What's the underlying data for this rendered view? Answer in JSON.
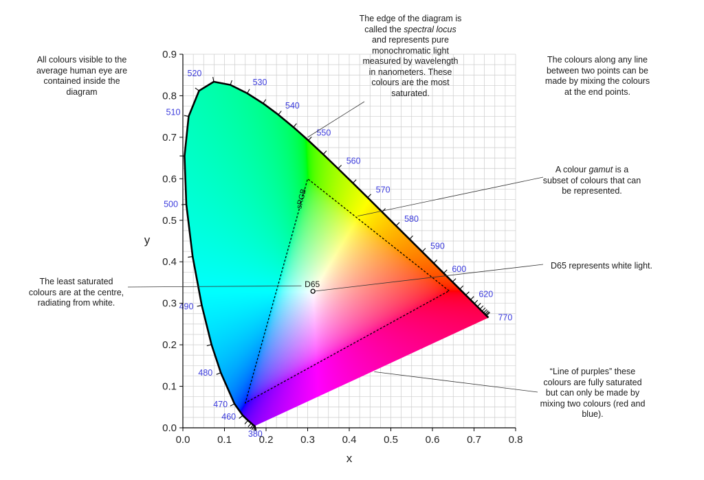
{
  "chart_data": {
    "type": "diagram",
    "xlabel": "x",
    "ylabel": "y",
    "xlim": [
      0.0,
      0.8
    ],
    "ylim": [
      0.0,
      0.9
    ],
    "x_ticks": [
      "0.0",
      "0.1",
      "0.2",
      "0.3",
      "0.4",
      "0.5",
      "0.6",
      "0.7",
      "0.8"
    ],
    "y_ticks": [
      "0.0",
      "0.1",
      "0.2",
      "0.3",
      "0.4",
      "0.5",
      "0.6",
      "0.7",
      "0.8",
      "0.9"
    ],
    "grid": true,
    "spectral_locus": [
      [
        0.1741,
        0.005
      ],
      [
        0.1738,
        0.0049
      ],
      [
        0.1733,
        0.0048
      ],
      [
        0.1726,
        0.0048
      ],
      [
        0.1714,
        0.0051
      ],
      [
        0.1689,
        0.0069
      ],
      [
        0.1644,
        0.0109
      ],
      [
        0.1566,
        0.0177
      ],
      [
        0.144,
        0.0297
      ],
      [
        0.1241,
        0.0578
      ],
      [
        0.0913,
        0.1327
      ],
      [
        0.0687,
        0.2007
      ],
      [
        0.0454,
        0.295
      ],
      [
        0.0235,
        0.4127
      ],
      [
        0.0082,
        0.5384
      ],
      [
        0.0039,
        0.6548
      ],
      [
        0.0139,
        0.7502
      ],
      [
        0.0389,
        0.812
      ],
      [
        0.0743,
        0.8338
      ],
      [
        0.1142,
        0.8262
      ],
      [
        0.1547,
        0.8059
      ],
      [
        0.1929,
        0.7816
      ],
      [
        0.2296,
        0.7543
      ],
      [
        0.2658,
        0.7243
      ],
      [
        0.3016,
        0.6923
      ],
      [
        0.3373,
        0.6589
      ],
      [
        0.3731,
        0.6245
      ],
      [
        0.4087,
        0.5896
      ],
      [
        0.4441,
        0.5547
      ],
      [
        0.4788,
        0.5202
      ],
      [
        0.5125,
        0.4866
      ],
      [
        0.5448,
        0.4544
      ],
      [
        0.5752,
        0.4242
      ],
      [
        0.6029,
        0.3965
      ],
      [
        0.627,
        0.3725
      ],
      [
        0.6482,
        0.3514
      ],
      [
        0.6658,
        0.334
      ],
      [
        0.6801,
        0.3197
      ],
      [
        0.6915,
        0.3083
      ],
      [
        0.7006,
        0.2993
      ],
      [
        0.7079,
        0.292
      ],
      [
        0.714,
        0.2859
      ],
      [
        0.719,
        0.2809
      ],
      [
        0.723,
        0.277
      ],
      [
        0.726,
        0.274
      ],
      [
        0.7283,
        0.2717
      ],
      [
        0.73,
        0.27
      ],
      [
        0.7347,
        0.2653
      ]
    ],
    "wavelength_labels": [
      {
        "nm": 380,
        "x": 0.1741,
        "y": 0.005,
        "label": "380"
      },
      {
        "nm": 460,
        "x": 0.144,
        "y": 0.0297,
        "label": "460"
      },
      {
        "nm": 470,
        "x": 0.1241,
        "y": 0.0578,
        "label": "470"
      },
      {
        "nm": 480,
        "x": 0.0913,
        "y": 0.1327,
        "label": "480"
      },
      {
        "nm": 490,
        "x": 0.0454,
        "y": 0.295,
        "label": "490"
      },
      {
        "nm": 500,
        "x": 0.0082,
        "y": 0.5384,
        "label": "500"
      },
      {
        "nm": 510,
        "x": 0.0139,
        "y": 0.7502,
        "label": "510"
      },
      {
        "nm": 520,
        "x": 0.0743,
        "y": 0.8338,
        "label": "520"
      },
      {
        "nm": 530,
        "x": 0.1547,
        "y": 0.8059,
        "label": "530"
      },
      {
        "nm": 540,
        "x": 0.2296,
        "y": 0.7543,
        "label": "540"
      },
      {
        "nm": 550,
        "x": 0.3016,
        "y": 0.6923,
        "label": "550"
      },
      {
        "nm": 560,
        "x": 0.3731,
        "y": 0.6245,
        "label": "560"
      },
      {
        "nm": 570,
        "x": 0.4441,
        "y": 0.5547,
        "label": "570"
      },
      {
        "nm": 580,
        "x": 0.5125,
        "y": 0.4866,
        "label": "580"
      },
      {
        "nm": 590,
        "x": 0.5752,
        "y": 0.4242,
        "label": "590"
      },
      {
        "nm": 600,
        "x": 0.627,
        "y": 0.3725,
        "label": "600"
      },
      {
        "nm": 620,
        "x": 0.6915,
        "y": 0.3083,
        "label": "620"
      },
      {
        "nm": 770,
        "x": 0.7347,
        "y": 0.2653,
        "label": "770"
      }
    ],
    "srgb_gamut": {
      "label": "sRGB",
      "vertices": [
        [
          0.64,
          0.33
        ],
        [
          0.3,
          0.6
        ],
        [
          0.15,
          0.06
        ]
      ]
    },
    "white_point": {
      "label": "D65",
      "x": 0.3127,
      "y": 0.329
    },
    "annotations": [
      {
        "id": "inside",
        "text": "All colours visible to the average human eye are contained inside the diagram"
      },
      {
        "id": "locus",
        "text_before": "The edge of the diagram is called the ",
        "text_italic": "spectral locus",
        "text_after": " and represents pure monochromatic light measured by wavelength in nanometers. These colours are the most saturated.",
        "target": [
          0.3,
          0.7
        ]
      },
      {
        "id": "mixing",
        "text": "The colours along any line between two points can be made by mixing the colours at the end points."
      },
      {
        "id": "gamut",
        "text_before": "A colour ",
        "text_italic": "gamut",
        "text_after": " is a subset of colours that can be represented.",
        "target": [
          0.42,
          0.51
        ]
      },
      {
        "id": "d65",
        "text": "D65 represents white light.",
        "target": [
          0.315,
          0.329
        ]
      },
      {
        "id": "least",
        "text": "The least saturated colours are at the centre, radiating from white.",
        "target": [
          0.285,
          0.342
        ]
      },
      {
        "id": "purples",
        "text": "“Line of purples” these colours are fully saturated but can only be made by mixing two colours (red and blue).",
        "target": [
          0.46,
          0.135
        ]
      }
    ],
    "colors": {
      "locus_stroke": "#000000",
      "wavelength_label": "#3b3bdc",
      "grid": "#cccccc",
      "leader_line": "#333333"
    }
  }
}
